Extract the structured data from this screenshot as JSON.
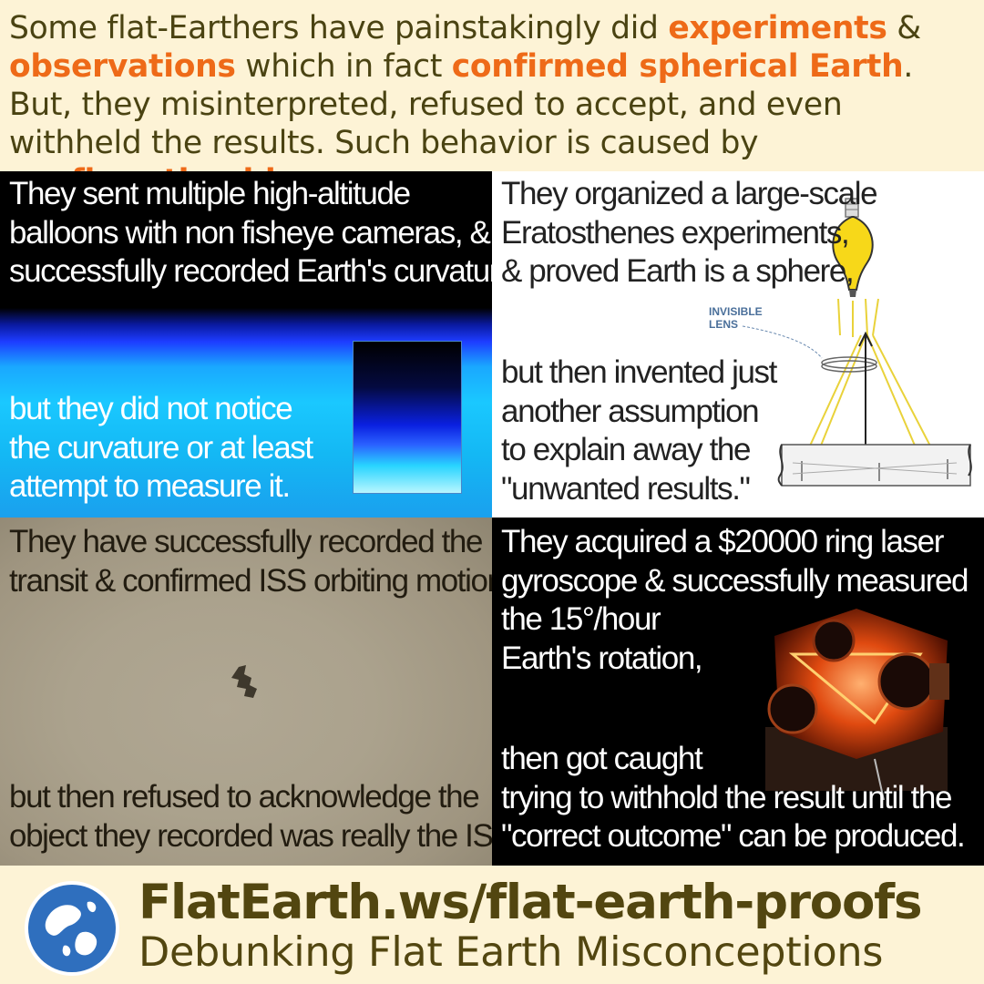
{
  "header": {
    "p1": "Some flat-Earthers have painstakingly did ",
    "h1": "experiments",
    "p2": " & ",
    "h2": "observations",
    "p3": " which in fact ",
    "h3": "confirmed spherical Earth",
    "p4": ". But, they misinterpreted, refused to accept, and even withheld the results. Such behavior is caused by ",
    "h4": "confirmation bias",
    "p5": ".",
    "highlight_color": "#ee6a18",
    "text_color": "#4a4312"
  },
  "panels": {
    "balloons": {
      "top_lines": [
        "They sent multiple high-altitude",
        "balloons with non fisheye cameras, &",
        "successfully recorded Earth's curvature,"
      ],
      "bottom_lines": [
        "but they did not notice",
        "the curvature or at least",
        "attempt to measure it."
      ]
    },
    "eratosthenes": {
      "top_lines": [
        "They organized a large-scale",
        "Eratosthenes experiments,",
        "& proved Earth is a sphere,"
      ],
      "bottom_lines": [
        "but then invented just",
        "another assumption",
        "to explain away the",
        "\"unwanted results.\""
      ],
      "diagram_label_1": "INVISIBLE",
      "diagram_label_2": "LENS"
    },
    "iss": {
      "top_lines": [
        "They have successfully recorded the ISS",
        "transit & confirmed ISS orbiting motion,"
      ],
      "bottom_lines": [
        "but then refused to acknowledge the",
        "object they recorded was really the ISS."
      ]
    },
    "gyroscope": {
      "top_lines": [
        "They acquired a $20000 ring laser",
        "gyroscope & successfully measured",
        "the 15°/hour",
        "Earth's rotation,"
      ],
      "bottom_lines": [
        "then got caught",
        "trying to withhold the result until the",
        "\"correct outcome\" can be produced."
      ]
    }
  },
  "footer": {
    "url": "FlatEarth.ws/flat-earth-proofs",
    "tagline": "Debunking Flat Earth Misconceptions"
  }
}
